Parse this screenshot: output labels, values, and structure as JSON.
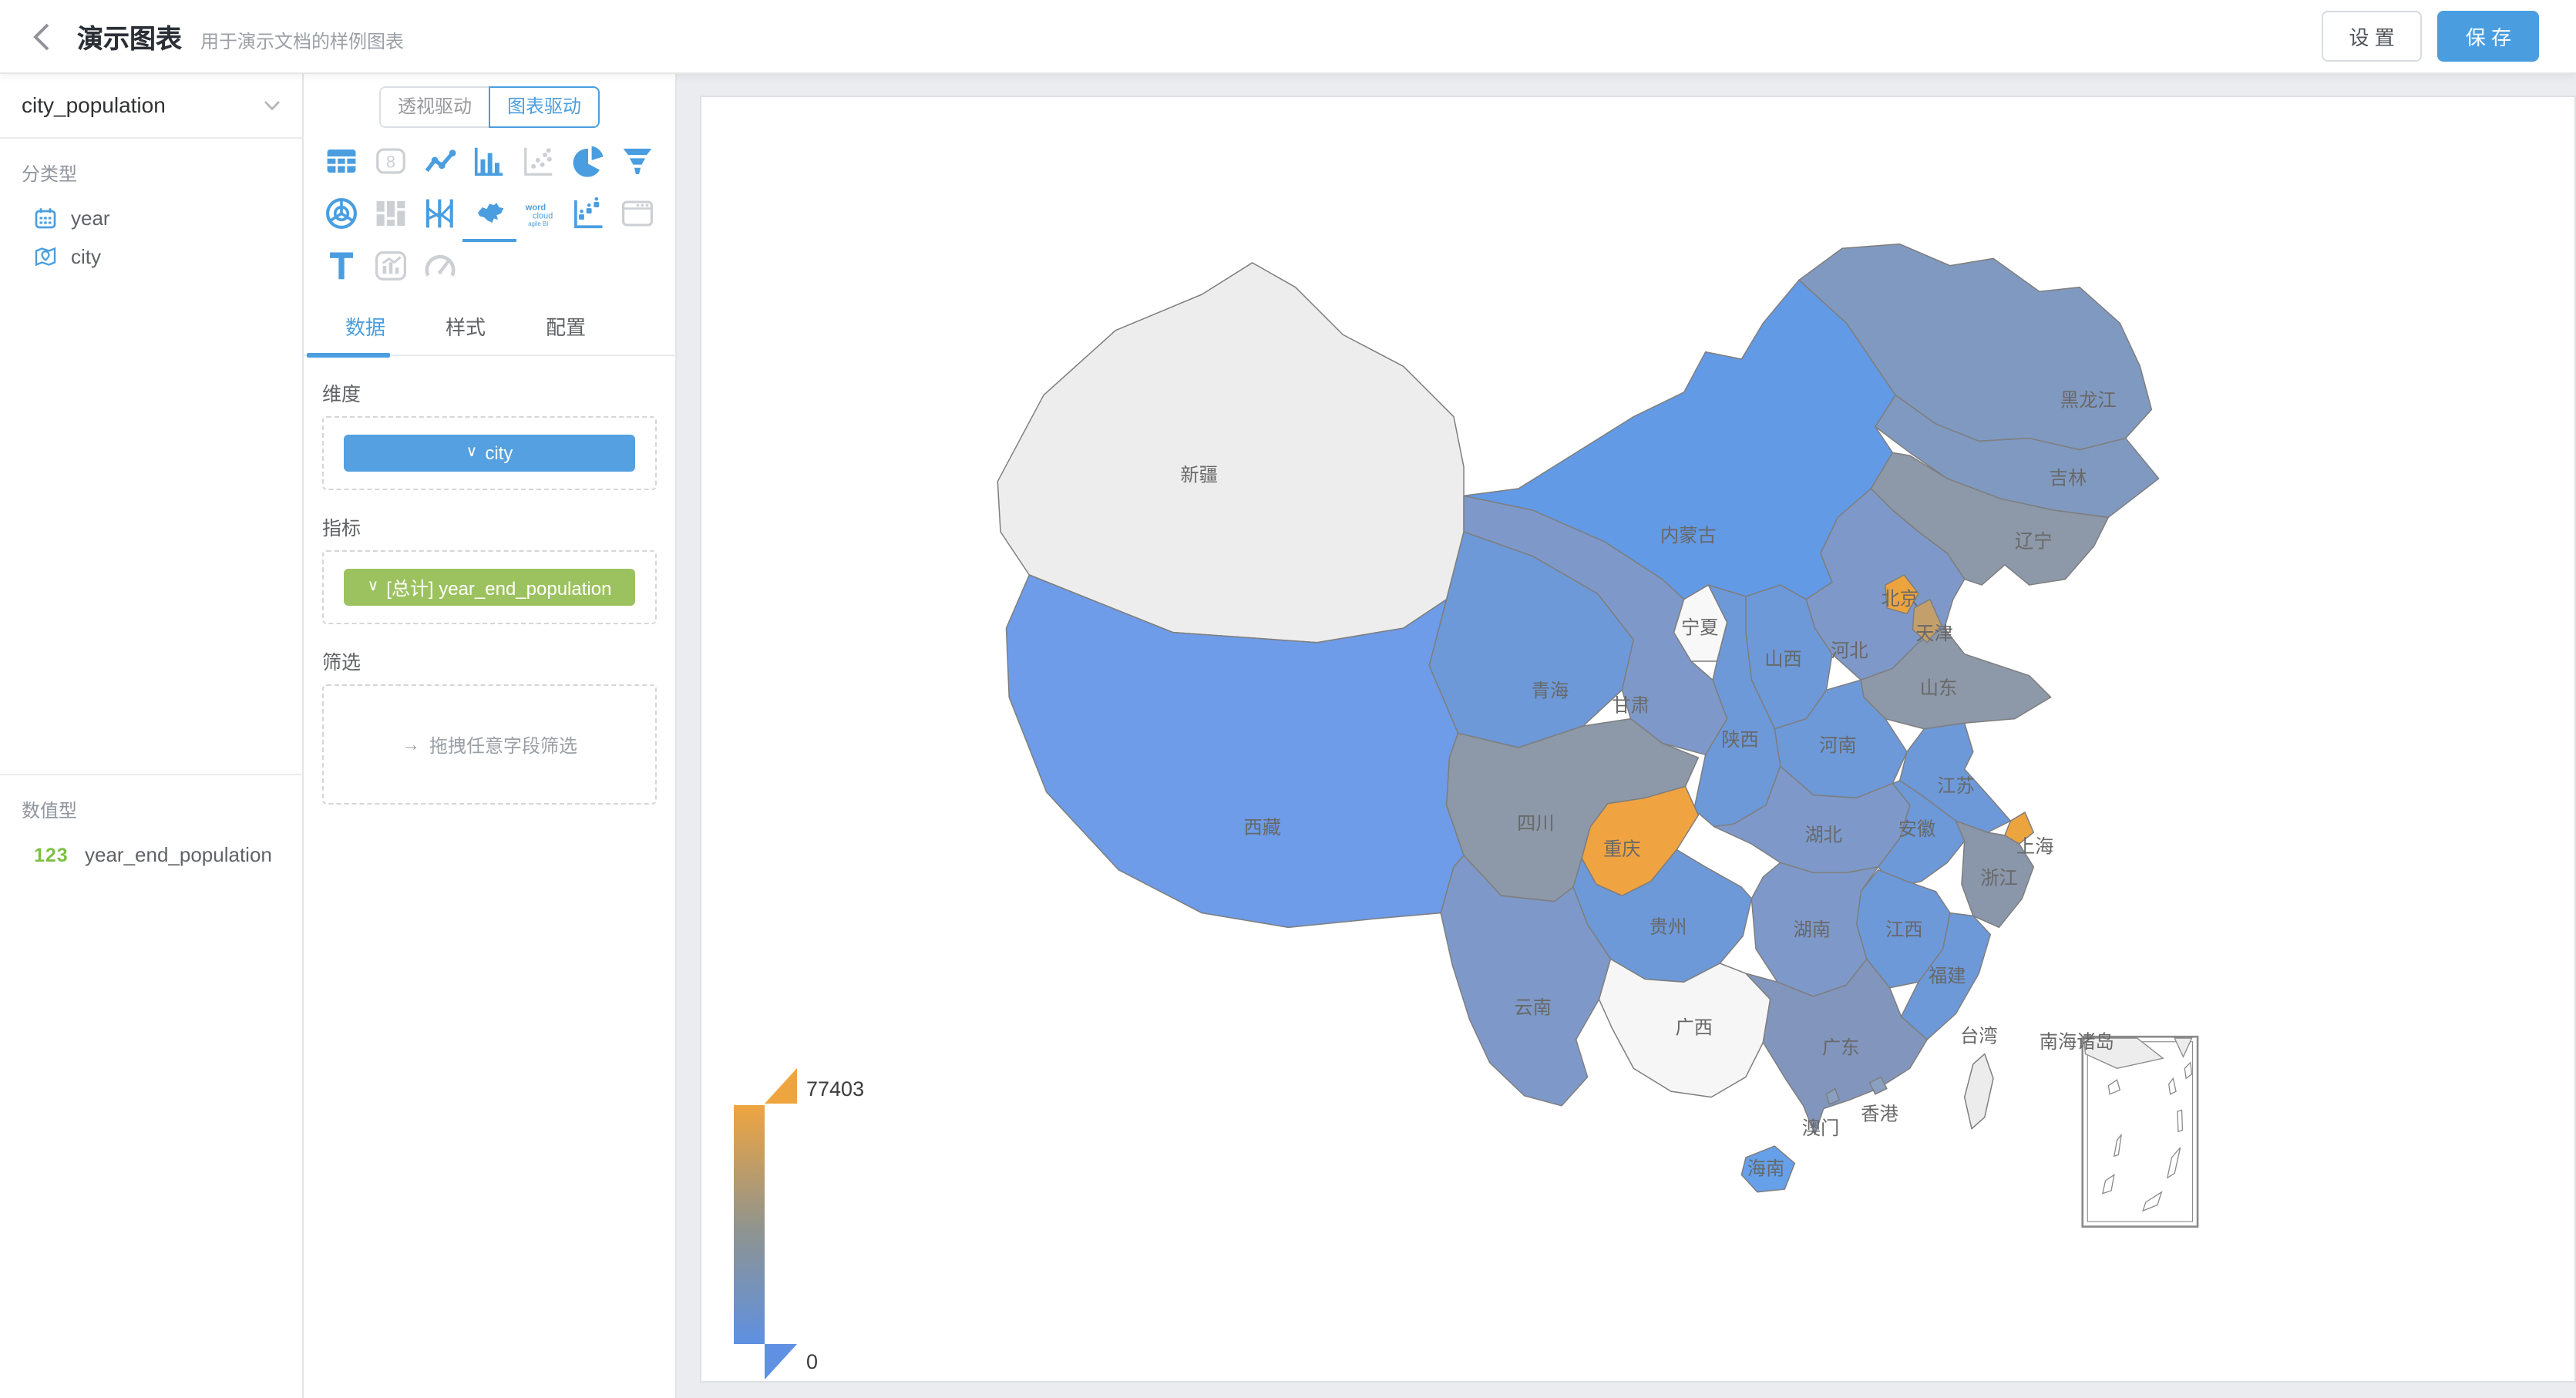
{
  "header": {
    "title": "演示图表",
    "subtitle": "用于演示文档的样例图表",
    "settings_label": "设 置",
    "save_label": "保 存"
  },
  "dataset_panel": {
    "dataset_name": "city_population",
    "category_section_label": "分类型",
    "category_fields": [
      {
        "name": "year",
        "icon": "calendar-icon"
      },
      {
        "name": "city",
        "icon": "location-icon"
      }
    ],
    "numeric_section_label": "数值型",
    "numeric_fields": [
      {
        "name": "year_end_population",
        "icon_text": "123"
      }
    ]
  },
  "chart_panel": {
    "mode_toggle": {
      "options": [
        "透视驱动",
        "图表驱动"
      ],
      "active": "图表驱动"
    },
    "chart_types": [
      {
        "name": "table",
        "state": "active"
      },
      {
        "name": "kpi-card",
        "state": "disabled"
      },
      {
        "name": "line-chart",
        "state": "active"
      },
      {
        "name": "bar-chart",
        "state": "active"
      },
      {
        "name": "scatter-plot",
        "state": "disabled"
      },
      {
        "name": "pie-chart",
        "state": "active"
      },
      {
        "name": "funnel-chart",
        "state": "active"
      },
      {
        "name": "radar-chart",
        "state": "active"
      },
      {
        "name": "board",
        "state": "disabled"
      },
      {
        "name": "parallel-chart",
        "state": "active"
      },
      {
        "name": "china-map",
        "state": "selected"
      },
      {
        "name": "word-cloud",
        "state": "active"
      },
      {
        "name": "waterfall-chart",
        "state": "active"
      },
      {
        "name": "iframe-card",
        "state": "disabled"
      },
      {
        "name": "text-card",
        "state": "active"
      },
      {
        "name": "mix-chart",
        "state": "disabled"
      },
      {
        "name": "gauge",
        "state": "disabled"
      }
    ],
    "tabs": [
      "数据",
      "样式",
      "配置"
    ],
    "active_tab": "数据",
    "dimension_label": "维度",
    "dimension_chip": "city",
    "metric_label": "指标",
    "metric_chip": "[总计] year_end_population",
    "filter_label": "筛选",
    "filter_placeholder": "拖拽任意字段筛选"
  },
  "canvas": {
    "legend_max": "77403",
    "legend_min": "0"
  },
  "chart_data": {
    "type": "map",
    "map": "china",
    "dimension": "city",
    "metric": "year_end_population",
    "legend": {
      "min": 0,
      "max": 77403,
      "max_color": "#efa53f",
      "min_color": "#5f90e2"
    },
    "regions": [
      {
        "name": "新疆",
        "color": "#ededed"
      },
      {
        "name": "西藏",
        "color": "#6e9ce8"
      },
      {
        "name": "青海",
        "color": "#6d99d8"
      },
      {
        "name": "甘肃",
        "color": "#7e99c9"
      },
      {
        "name": "内蒙古",
        "color": "#629ae6"
      },
      {
        "name": "宁夏",
        "color": "#f8f8f8"
      },
      {
        "name": "黑龙江",
        "color": "#8099c0"
      },
      {
        "name": "吉林",
        "color": "#8099c0"
      },
      {
        "name": "辽宁",
        "color": "#8d98a9"
      },
      {
        "name": "河北",
        "color": "#7e99c9"
      },
      {
        "name": "山西",
        "color": "#6d99d8"
      },
      {
        "name": "山东",
        "color": "#8d98a9"
      },
      {
        "name": "河南",
        "color": "#6d99d8"
      },
      {
        "name": "陕西",
        "color": "#6d99d8"
      },
      {
        "name": "江苏",
        "color": "#6d99d8"
      },
      {
        "name": "安徽",
        "color": "#6d99d8"
      },
      {
        "name": "湖北",
        "color": "#7e99c9"
      },
      {
        "name": "浙江",
        "color": "#8a96a9"
      },
      {
        "name": "江西",
        "color": "#6d99d8"
      },
      {
        "name": "湖南",
        "color": "#7e99c9"
      },
      {
        "name": "四川",
        "color": "#8d98a9"
      },
      {
        "name": "重庆",
        "color": "#efa341"
      },
      {
        "name": "贵州",
        "color": "#6d99d8"
      },
      {
        "name": "云南",
        "color": "#7e99c9"
      },
      {
        "name": "广西",
        "color": "#f6f6f6"
      },
      {
        "name": "广东",
        "color": "#8296bd"
      },
      {
        "name": "福建",
        "color": "#6d99d8"
      },
      {
        "name": "台湾",
        "color": "#ececec"
      },
      {
        "name": "海南",
        "color": "#65a0e8"
      },
      {
        "name": "北京",
        "color": "#eca43f"
      },
      {
        "name": "天津",
        "color": "#c3a06b"
      },
      {
        "name": "上海",
        "color": "#eca43f"
      },
      {
        "name": "香港",
        "color": "#8aa0c0"
      },
      {
        "name": "澳门",
        "color": "#8aa0c0"
      },
      {
        "name": "南海诸岛",
        "color": "#ffffff"
      }
    ]
  }
}
